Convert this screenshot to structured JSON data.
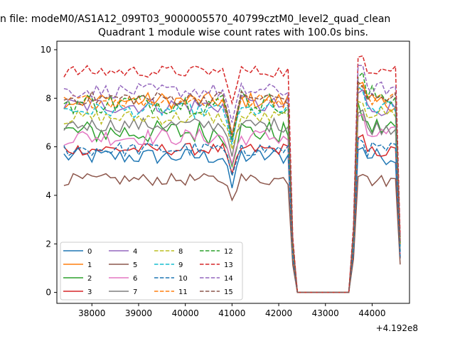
{
  "figure": {
    "suptitle": "n file: modeM0/AS1A12_099T03_9000005570_40799cztM0_level2_quad_clean",
    "offset_text": "+4.192e8"
  },
  "chart_data": {
    "type": "line",
    "title": "Quadrant 1 module wise count rates with 100.0s bins.",
    "xlabel": "",
    "ylabel": "",
    "x_offset": 419200000,
    "xlim": [
      37250,
      44800
    ],
    "ylim": [
      -0.45,
      10.35
    ],
    "xticks": [
      38000,
      39000,
      40000,
      41000,
      42000,
      43000,
      44000
    ],
    "yticks": [
      0,
      2,
      4,
      6,
      8,
      10
    ],
    "grid": false,
    "legend": {
      "placement": "lower-left",
      "columns": 4
    },
    "x_spec": {
      "segments": [
        {
          "start": 37400,
          "step": 100,
          "count": 51,
          "comment": "37400..42400"
        },
        {
          "start": 43500,
          "step": 100,
          "count": 12,
          "comment": "43500..44600"
        }
      ]
    },
    "series": [
      {
        "name": "0",
        "color": "#1f77b4",
        "dash": "solid",
        "mean": 5.6,
        "spread": 0.35,
        "dip": 4.3,
        "seg2_mean": 5.6
      },
      {
        "name": "1",
        "color": "#ff7f0e",
        "dash": "solid",
        "mean": 7.9,
        "spread": 0.35,
        "dip": 6.5,
        "seg2_mean": 7.8
      },
      {
        "name": "2",
        "color": "#2ca02c",
        "dash": "solid",
        "mean": 6.6,
        "spread": 0.5,
        "dip": 5.2,
        "seg2_mean": 6.8
      },
      {
        "name": "3",
        "color": "#d62728",
        "dash": "solid",
        "mean": 5.9,
        "spread": 0.25,
        "dip": 4.9,
        "seg2_mean": 5.8
      },
      {
        "name": "4",
        "color": "#9467bd",
        "dash": "solid",
        "mean": 7.7,
        "spread": 0.35,
        "dip": 6.2,
        "seg2_mean": 7.6
      },
      {
        "name": "5",
        "color": "#8c564b",
        "dash": "solid",
        "mean": 4.65,
        "spread": 0.25,
        "dip": 3.8,
        "seg2_mean": 4.6
      },
      {
        "name": "6",
        "color": "#e377c2",
        "dash": "solid",
        "mean": 6.4,
        "spread": 0.35,
        "dip": 5.3,
        "seg2_mean": 6.5
      },
      {
        "name": "7",
        "color": "#7f7f7f",
        "dash": "solid",
        "mean": 6.9,
        "spread": 0.3,
        "dip": 5.6,
        "seg2_mean": 6.8
      },
      {
        "name": "8",
        "color": "#bcbd22",
        "dash": "dashed",
        "mean": 7.2,
        "spread": 0.3,
        "dip": 5.9,
        "seg2_mean": 7.4
      },
      {
        "name": "9",
        "color": "#17becf",
        "dash": "dashed",
        "mean": 7.5,
        "spread": 0.3,
        "dip": 6.1,
        "seg2_mean": 7.6
      },
      {
        "name": "10",
        "color": "#1f77b4",
        "dash": "dashed",
        "mean": 5.9,
        "spread": 0.3,
        "dip": 4.8,
        "seg2_mean": 5.9
      },
      {
        "name": "11",
        "color": "#ff7f0e",
        "dash": "dashed",
        "mean": 7.9,
        "spread": 0.3,
        "dip": 6.4,
        "seg2_mean": 8.0
      },
      {
        "name": "12",
        "color": "#2ca02c",
        "dash": "dashed",
        "mean": 7.8,
        "spread": 0.45,
        "dip": 6.3,
        "seg2_mean": 8.1
      },
      {
        "name": "13",
        "color": "#d62728",
        "dash": "dashed",
        "mean": 9.1,
        "spread": 0.25,
        "dip": 7.8,
        "seg2_mean": 9.2
      },
      {
        "name": "14",
        "color": "#9467bd",
        "dash": "dashed",
        "mean": 8.3,
        "spread": 0.3,
        "dip": 7.0,
        "seg2_mean": 8.4
      },
      {
        "name": "15",
        "color": "#8c564b",
        "dash": "dashed",
        "mean": 8.0,
        "spread": 0.3,
        "dip": 6.5,
        "seg2_mean": 8.0
      }
    ]
  }
}
